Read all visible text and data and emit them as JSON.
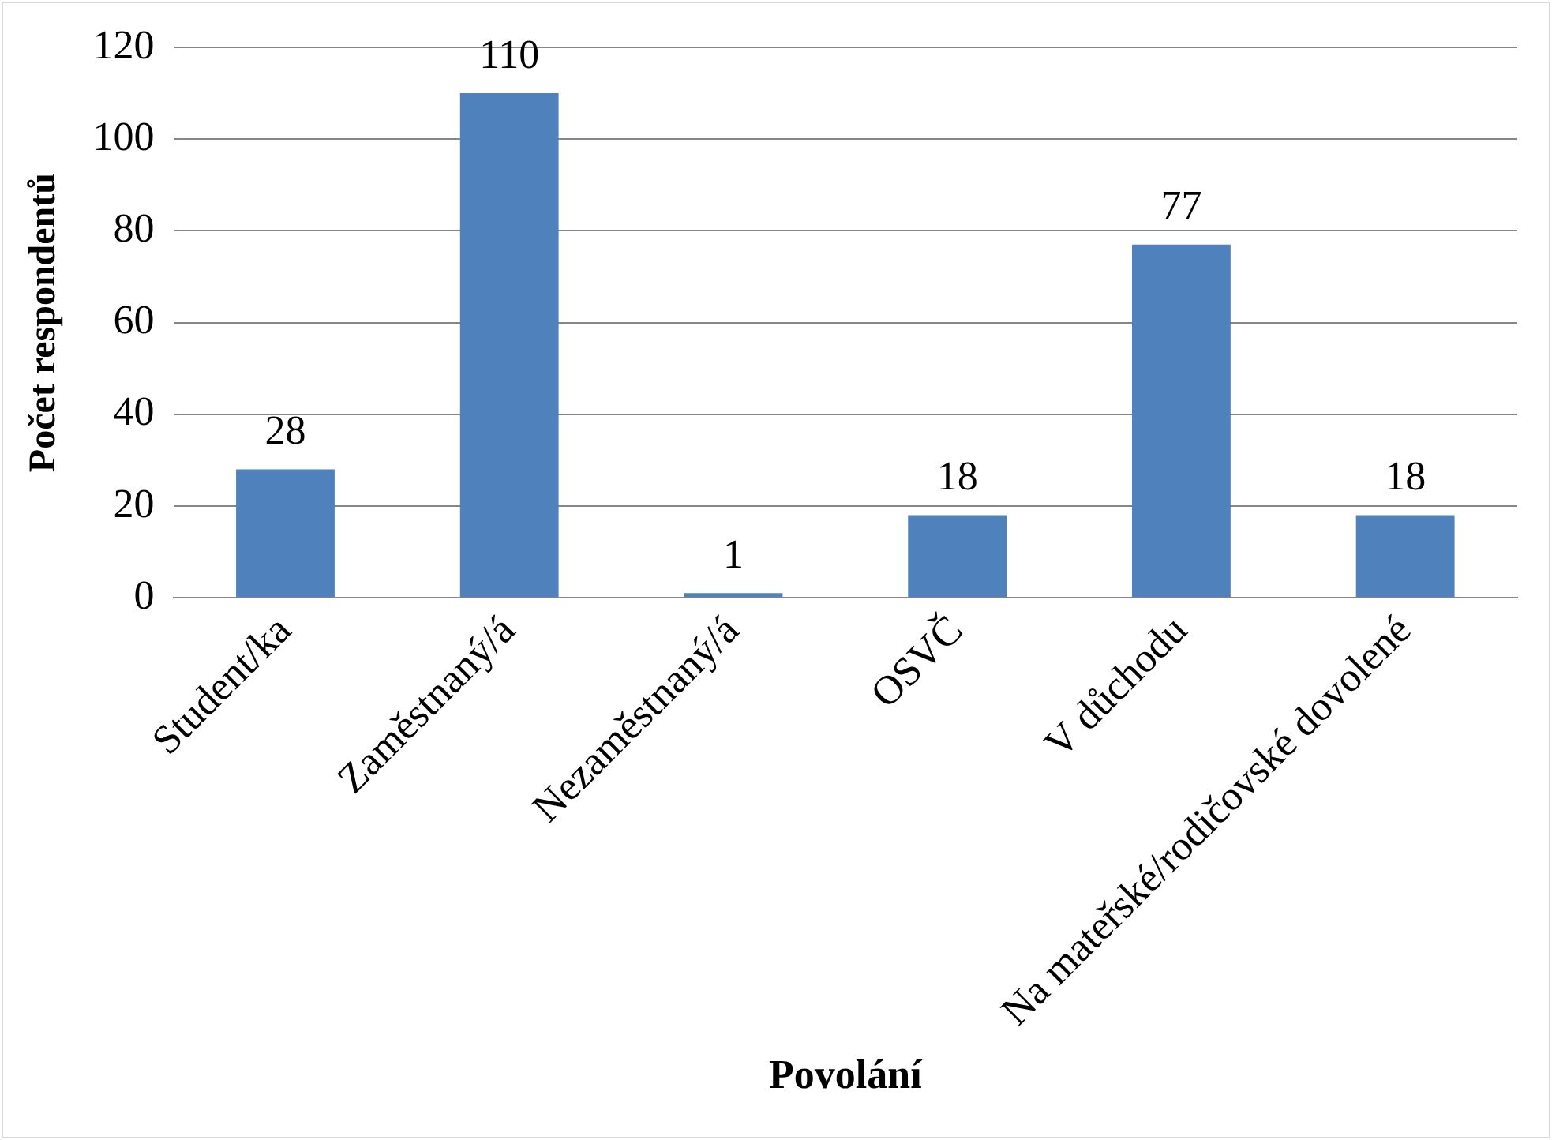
{
  "chart_data": {
    "type": "bar",
    "xlabel": "Povolání",
    "ylabel": "Počet respondentů",
    "categories": [
      "Student/ka",
      "Zaměstnaný/á",
      "Nezaměstnaný/á",
      "OSVČ",
      "V důchodu",
      "Na mateřské/rodičovské dovolené"
    ],
    "values": [
      28,
      110,
      1,
      18,
      77,
      18
    ],
    "color": "#4f81bd",
    "ylim": [
      0,
      120
    ],
    "yticks": [
      0,
      20,
      40,
      60,
      80,
      100,
      120
    ],
    "grid": "y",
    "data_labels": true,
    "legend": false
  }
}
